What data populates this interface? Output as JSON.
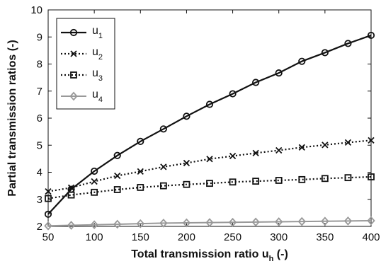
{
  "chart_data": {
    "type": "line",
    "xlabel_main": "Total transmission ratio u",
    "xlabel_sub": "h",
    "xlabel_tail": " (-)",
    "ylabel": "Partial transmission ratios (-)",
    "xlim": [
      50,
      400
    ],
    "ylim": [
      2,
      10
    ],
    "x_ticks": [
      50,
      100,
      150,
      200,
      250,
      300,
      350,
      400
    ],
    "y_ticks": [
      2,
      3,
      4,
      5,
      6,
      7,
      8,
      9,
      10
    ],
    "grid": false,
    "legend_position": "top-left",
    "x": [
      50,
      75,
      100,
      125,
      150,
      175,
      200,
      225,
      250,
      275,
      300,
      325,
      350,
      375,
      400
    ],
    "series": [
      {
        "name": "u1",
        "label_main": "u",
        "label_sub": "1",
        "marker": "circle",
        "line": "solid",
        "color": "#111111",
        "values": [
          2.45,
          3.37,
          4.04,
          4.62,
          5.14,
          5.6,
          6.07,
          6.51,
          6.9,
          7.32,
          7.67,
          8.1,
          8.42,
          8.76,
          9.06
        ]
      },
      {
        "name": "u2",
        "label_main": "u",
        "label_sub": "2",
        "marker": "x",
        "line": "dotted",
        "color": "#111111",
        "values": [
          3.29,
          3.43,
          3.66,
          3.87,
          4.03,
          4.2,
          4.34,
          4.49,
          4.6,
          4.71,
          4.81,
          4.92,
          5.01,
          5.1,
          5.18
        ]
      },
      {
        "name": "u3",
        "label_main": "u",
        "label_sub": "3",
        "marker": "square",
        "line": "dotted",
        "color": "#111111",
        "values": [
          3.03,
          3.16,
          3.26,
          3.36,
          3.44,
          3.5,
          3.55,
          3.59,
          3.64,
          3.67,
          3.7,
          3.73,
          3.77,
          3.8,
          3.83
        ]
      },
      {
        "name": "u4",
        "label_main": "u",
        "label_sub": "4",
        "marker": "diamond",
        "line": "solid-light",
        "color": "#999999",
        "values": [
          2.02,
          2.04,
          2.06,
          2.08,
          2.1,
          2.12,
          2.13,
          2.14,
          2.15,
          2.16,
          2.17,
          2.18,
          2.19,
          2.2,
          2.21
        ]
      }
    ]
  }
}
